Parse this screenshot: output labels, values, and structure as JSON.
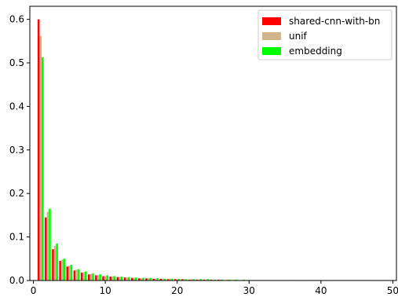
{
  "chart_data": {
    "type": "bar",
    "title": "",
    "xlabel": "",
    "ylabel": "",
    "xlim": [
      -0.5,
      50.5
    ],
    "ylim": [
      0,
      0.63
    ],
    "xticks": [
      0,
      10,
      20,
      30,
      40,
      50
    ],
    "yticks": [
      0.0,
      0.1,
      0.2,
      0.3,
      0.4,
      0.5,
      0.6
    ],
    "xtick_labels": [
      "0",
      "10",
      "20",
      "30",
      "40",
      "50"
    ],
    "ytick_labels": [
      "0.0",
      "0.1",
      "0.2",
      "0.3",
      "0.4",
      "0.5",
      "0.6"
    ],
    "grid": false,
    "legend_position": "top-right",
    "x": [
      1,
      2,
      3,
      4,
      5,
      6,
      7,
      8,
      9,
      10,
      11,
      12,
      13,
      14,
      15,
      16,
      17,
      18,
      19,
      20,
      21,
      22,
      23,
      24,
      25,
      26,
      27,
      28,
      29,
      30,
      31,
      32,
      33,
      34,
      35,
      36,
      37,
      38,
      39,
      40,
      41,
      42,
      43,
      44,
      45,
      46,
      47,
      48,
      49,
      50
    ],
    "series": [
      {
        "name": "shared-cnn-with-bn",
        "color": "#ff0000",
        "values": [
          0.6,
          0.145,
          0.072,
          0.045,
          0.032,
          0.023,
          0.018,
          0.014,
          0.012,
          0.01,
          0.009,
          0.008,
          0.007,
          0.006,
          0.005,
          0.005,
          0.004,
          0.004,
          0.003,
          0.003,
          0.003,
          0.002,
          0.002,
          0.002,
          0.002,
          0.002,
          0.001,
          0.001,
          0.001,
          0.001,
          0.001,
          0.001,
          0.001,
          0.001,
          0.001,
          0.001,
          0.001,
          0.001,
          0.001,
          0.001,
          0.001,
          0.001,
          0.001,
          0.001,
          0.001,
          0.001,
          0.001,
          0.001,
          0.001,
          0.001
        ]
      },
      {
        "name": "unif",
        "color": "#d2b48c",
        "values": [
          0.562,
          0.158,
          0.08,
          0.048,
          0.034,
          0.025,
          0.019,
          0.015,
          0.012,
          0.01,
          0.009,
          0.008,
          0.007,
          0.006,
          0.005,
          0.005,
          0.004,
          0.004,
          0.004,
          0.003,
          0.003,
          0.003,
          0.002,
          0.002,
          0.002,
          0.002,
          0.002,
          0.002,
          0.001,
          0.001,
          0.001,
          0.001,
          0.001,
          0.001,
          0.001,
          0.001,
          0.001,
          0.001,
          0.001,
          0.001,
          0.001,
          0.001,
          0.001,
          0.001,
          0.001,
          0.001,
          0.001,
          0.001,
          0.001,
          0.001
        ]
      },
      {
        "name": "embedding",
        "color": "#00ff00",
        "values": [
          0.513,
          0.165,
          0.085,
          0.05,
          0.036,
          0.026,
          0.021,
          0.016,
          0.014,
          0.012,
          0.01,
          0.009,
          0.008,
          0.007,
          0.006,
          0.006,
          0.005,
          0.004,
          0.004,
          0.004,
          0.003,
          0.003,
          0.003,
          0.003,
          0.002,
          0.002,
          0.002,
          0.002,
          0.002,
          0.001,
          0.001,
          0.001,
          0.001,
          0.001,
          0.001,
          0.001,
          0.001,
          0.001,
          0.001,
          0.001,
          0.001,
          0.001,
          0.001,
          0.001,
          0.001,
          0.001,
          0.001,
          0.001,
          0.001,
          0.001
        ]
      }
    ]
  }
}
